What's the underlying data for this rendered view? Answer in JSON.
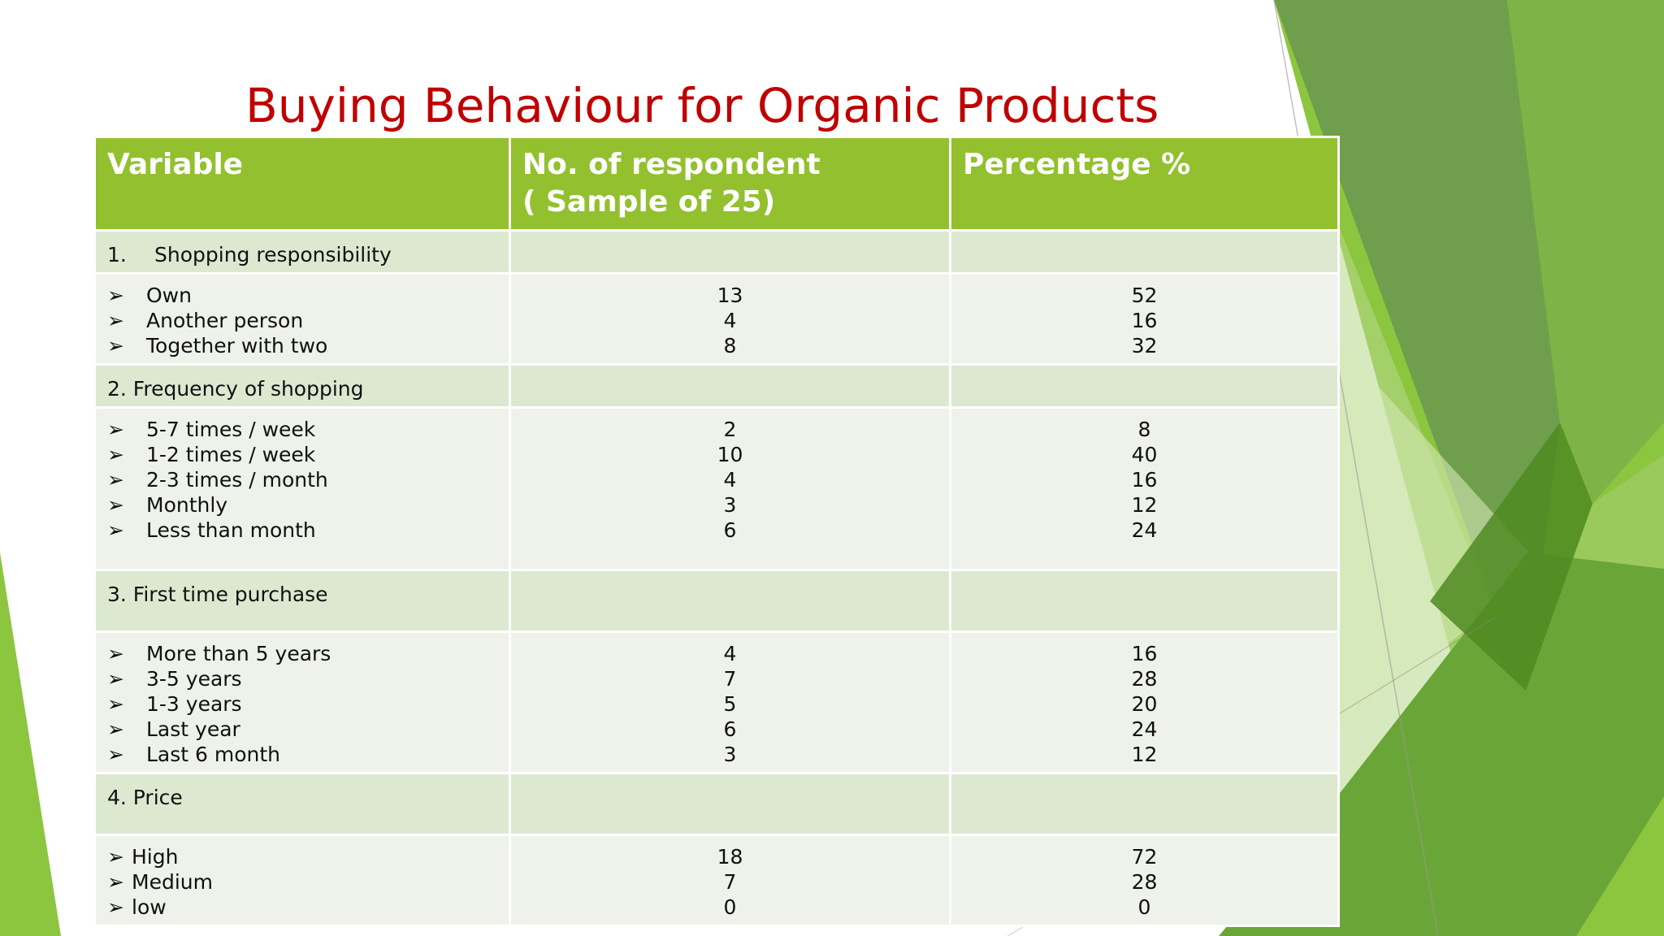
{
  "title": "Buying Behaviour for Organic Products",
  "headers": {
    "variable": "Variable",
    "respondents_line1": "No. of respondent",
    "respondents_line2": "( Sample of 25)",
    "percentage": "Percentage %"
  },
  "bullet": "➢",
  "sections": [
    {
      "number": "1.",
      "label": "Shopping responsibility",
      "items": [
        {
          "label": "Own",
          "count": "13",
          "percent": "52"
        },
        {
          "label": "Another person",
          "count": "4",
          "percent": "16"
        },
        {
          "label": "Together with two",
          "count": "8",
          "percent": "32"
        }
      ]
    },
    {
      "number": "",
      "label": "2. Frequency of shopping",
      "items": [
        {
          "label": "5-7 times / week",
          "count": "2",
          "percent": "8"
        },
        {
          "label": "1-2 times / week",
          "count": "10",
          "percent": "40"
        },
        {
          "label": "2-3 times / month",
          "count": "4",
          "percent": "16"
        },
        {
          "label": "Monthly",
          "count": "3",
          "percent": "12"
        },
        {
          "label": "Less than month",
          "count": "6",
          "percent": "24"
        }
      ]
    },
    {
      "number": "",
      "label": "3. First time purchase",
      "items": [
        {
          "label": "More than 5 years",
          "count": "4",
          "percent": "16"
        },
        {
          "label": "3-5 years",
          "count": "7",
          "percent": "28"
        },
        {
          "label": "1-3 years",
          "count": "5",
          "percent": "20"
        },
        {
          "label": "Last year",
          "count": "6",
          "percent": "24"
        },
        {
          "label": "Last 6 month",
          "count": "3",
          "percent": "12"
        }
      ]
    },
    {
      "number": "",
      "label": "4. Price",
      "items": [
        {
          "label": "High",
          "count": "18",
          "percent": "72"
        },
        {
          "label": "Medium",
          "count": "7",
          "percent": "28"
        },
        {
          "label": "low",
          "count": "0",
          "percent": "0"
        }
      ]
    }
  ],
  "colors": {
    "title": "#c00000",
    "header_bg": "#92c02e",
    "section_bg": "#dde8d1",
    "item_bg": "#eef2ea"
  }
}
